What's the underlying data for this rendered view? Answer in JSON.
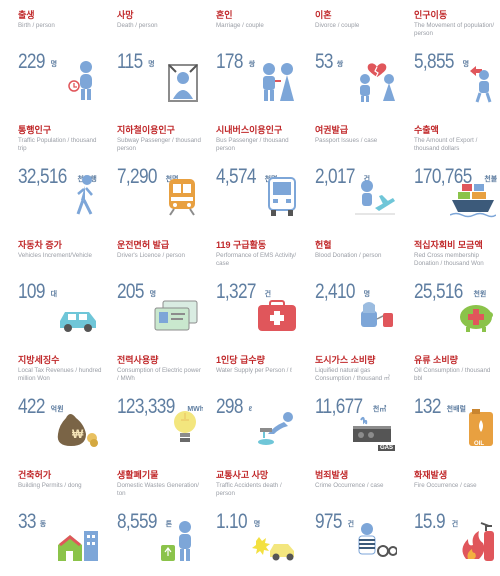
{
  "stats": [
    {
      "title": "출생",
      "sub": "Birth / person",
      "value": "229",
      "unit": "명",
      "icon": "baby-person-icon"
    },
    {
      "title": "사망",
      "sub": "Death / person",
      "value": "115",
      "unit": "명",
      "icon": "portrait-frame-icon"
    },
    {
      "title": "혼인",
      "sub": "Marriage / couple",
      "value": "178",
      "unit": "쌍",
      "icon": "married-couple-icon"
    },
    {
      "title": "이혼",
      "sub": "Divorce / couple",
      "value": "53",
      "unit": "쌍",
      "icon": "broken-heart-couple-icon"
    },
    {
      "title": "인구이동",
      "sub": "The Movement of population/ person",
      "value": "5,855",
      "unit": "명",
      "icon": "moving-person-icon"
    },
    {
      "title": "통행인구",
      "sub": "Traffic Population / thousand trip",
      "value": "32,516",
      "unit": "천통행",
      "icon": "walking-person-icon"
    },
    {
      "title": "지하철이용인구",
      "sub": "Subway Passenger / thousand person",
      "value": "7,290",
      "unit": "천명",
      "icon": "subway-train-icon"
    },
    {
      "title": "시내버스이용인구",
      "sub": "Bus Passenger / thousand person",
      "value": "4,574",
      "unit": "천명",
      "icon": "bus-icon"
    },
    {
      "title": "여권발급",
      "sub": "Passport Issues / case",
      "value": "2,017",
      "unit": "건",
      "icon": "airplane-person-icon"
    },
    {
      "title": "수출액",
      "sub": "The Amount of Export / thousand dollars",
      "value": "170,765",
      "unit": "천불",
      "icon": "cargo-ship-icon"
    },
    {
      "title": "자동차 증가",
      "sub": "Vehicles Increment/Vehicle",
      "value": "109",
      "unit": "대",
      "icon": "car-icon"
    },
    {
      "title": "운전면허 발급",
      "sub": "Driver's Licence / person",
      "value": "205",
      "unit": "명",
      "icon": "license-card-icon"
    },
    {
      "title": "119 구급활동",
      "sub": "Performance of EMS Activity/ case",
      "value": "1,327",
      "unit": "건",
      "icon": "ambulance-kit-icon"
    },
    {
      "title": "헌혈",
      "sub": "Blood Donation / person",
      "value": "2,410",
      "unit": "명",
      "icon": "blood-donation-icon"
    },
    {
      "title": "적십자회비 모금액",
      "sub": "Red Cross membership Donation / thousand Won",
      "value": "25,516",
      "unit": "천원",
      "icon": "red-cross-piggy-icon"
    },
    {
      "title": "지방세징수",
      "sub": "Local Tax Revenues / hundred million Won",
      "value": "422",
      "unit": "억원",
      "icon": "money-bag-icon"
    },
    {
      "title": "전력사용량",
      "sub": "Consumption of Electric power / MWh",
      "value": "123,339",
      "unit": "MWh",
      "icon": "light-bulb-icon"
    },
    {
      "title": "1인당 급수량",
      "sub": "Water Supply per Person / ℓ",
      "value": "298",
      "unit": "ℓ",
      "icon": "water-faucet-icon"
    },
    {
      "title": "도시가스 소비량",
      "sub": "Liquified natural gas Consumption / thousand ㎥",
      "value": "11,677",
      "unit": "천㎥",
      "icon": "gas-stove-icon",
      "icon_label": "GAS"
    },
    {
      "title": "유류 소비량",
      "sub": "Oil Consumption / thousand bbl",
      "value": "132",
      "unit": "천배럴",
      "icon": "oil-can-icon",
      "icon_label": "OIL"
    },
    {
      "title": "건축허가",
      "sub": "Building Permits / dong",
      "value": "33",
      "unit": "동",
      "icon": "houses-icon"
    },
    {
      "title": "생활폐기물",
      "sub": "Domestic Wastes Generation/ ton",
      "value": "8,559",
      "unit": "톤",
      "icon": "recycling-person-icon"
    },
    {
      "title": "교통사고 사망",
      "sub": "Traffic Accidents death / person",
      "value": "1.10",
      "unit": "명",
      "icon": "car-crash-icon"
    },
    {
      "title": "범죄발생",
      "sub": "Crime Occurrence / case",
      "value": "975",
      "unit": "건",
      "icon": "prisoner-handcuffs-icon"
    },
    {
      "title": "화재발생",
      "sub": "Fire Occurrence / case",
      "value": "15.9",
      "unit": "건",
      "icon": "fire-extinguisher-icon"
    }
  ],
  "colors": {
    "title": "#c0282a",
    "value": "#5f7ea1",
    "subtitle": "#9a9ea6",
    "icon_blue": "#7da6d8",
    "icon_red": "#e0565b"
  }
}
